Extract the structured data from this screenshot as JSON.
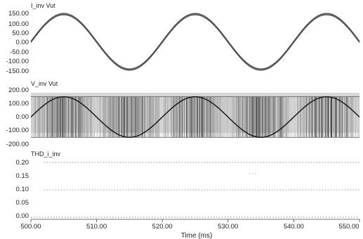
{
  "chart_data": [
    {
      "type": "line",
      "title": "I_inv  Vut",
      "xlim": [
        500,
        550
      ],
      "ylim": [
        -150,
        150
      ],
      "yticks": [
        "150.00",
        "100.00",
        "50.00",
        "0.00",
        "-50.00",
        "-100.00",
        "-150.00"
      ],
      "series": [
        {
          "name": "I_inv",
          "shape": "sine with high-frequency ripple",
          "amplitude": 150,
          "period_ms": 20,
          "peaks_at_ms": [
            505,
            525,
            545
          ],
          "troughs_at_ms": [
            515,
            535
          ],
          "ripple_band": 8,
          "color": "#666666"
        }
      ],
      "grid": false
    },
    {
      "type": "line",
      "title": "V_inv  Vut",
      "xlim": [
        500,
        550
      ],
      "ylim": [
        -200,
        200
      ],
      "yticks": [
        "200.00",
        "100.00",
        "0.00",
        "-100.00",
        "-200.00"
      ],
      "series": [
        {
          "name": "V_inv",
          "shape": "PWM switching between -150 and 150",
          "levels": [
            -150,
            150
          ],
          "color": "#777777"
        },
        {
          "name": "Vut",
          "shape": "sine",
          "amplitude": 150,
          "period_ms": 20,
          "peaks_at_ms": [
            505,
            525,
            545
          ],
          "color": "#111111"
        }
      ],
      "grid": false
    },
    {
      "type": "line",
      "title": "THD_i_inv",
      "xlim": [
        500,
        550
      ],
      "ylim": [
        0,
        0.2
      ],
      "yticks": [
        "0.20",
        "0.15",
        "0.10",
        "0.05",
        "0.00"
      ],
      "series": [
        {
          "name": "dotted-0.20",
          "values_at_ms": [
            [
              502,
              0.2
            ],
            [
              550,
              0.2
            ]
          ],
          "color": "#888888"
        },
        {
          "name": "dotted-0.10",
          "values_at_ms": [
            [
              502,
              0.1
            ],
            [
              550,
              0.1
            ]
          ],
          "color": "#888888"
        },
        {
          "name": "dotted-0.00",
          "values_at_ms": [
            [
              500,
              0.0
            ],
            [
              550,
              0.0
            ]
          ],
          "color": "#888888"
        }
      ],
      "grid": false
    }
  ],
  "x_axis": {
    "label": "Time (ms)",
    "ticks": [
      "500.00",
      "510.00",
      "520.00",
      "530.00",
      "540.00",
      "550.00"
    ],
    "tick_values": [
      500,
      510,
      520,
      530,
      540,
      550
    ]
  }
}
